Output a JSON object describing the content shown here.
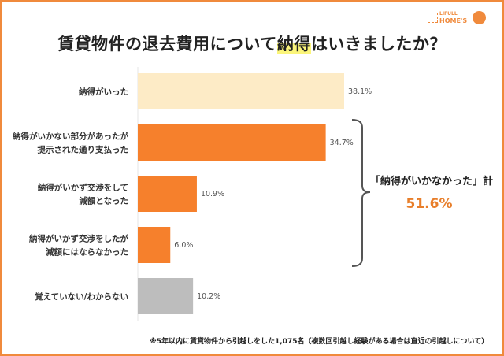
{
  "title_pre": "賃貸物件の退去費用について",
  "title_highlight": "納得",
  "title_post": "はいきましたか？",
  "logo": {
    "line1": "LIFULL",
    "line2": "HOME'S"
  },
  "annotation": {
    "label": "「納得がいかなかった」計",
    "value": "51.6%"
  },
  "footnote": "※5年以内に賃貸物件から引越しをした1,075名（複数回引越し経験がある場合は直近の引越しについて）",
  "colors": {
    "border": "#f08a3c",
    "satisfied": "#fdebc6",
    "unsatisfied": "#f6802c",
    "unknown": "#bdbdbd",
    "accent_text": "#e87e2a"
  },
  "chart_data": {
    "type": "bar",
    "orientation": "horizontal",
    "categories": [
      [
        "納得がいった"
      ],
      [
        "納得がいかない部分があったが",
        "提示された通り支払った"
      ],
      [
        "納得がいかず交渉をして",
        "減額となった"
      ],
      [
        "納得がいかず交渉をしたが",
        "減額にはならなかった"
      ],
      [
        "覚えていない/わからない"
      ]
    ],
    "values": [
      38.1,
      34.7,
      10.9,
      6.0,
      10.2
    ],
    "value_labels": [
      "38.1%",
      "34.7%",
      "10.9%",
      "6.0%",
      "10.2%"
    ],
    "bar_colors": [
      "#fdebc6",
      "#f6802c",
      "#f6802c",
      "#f6802c",
      "#bdbdbd"
    ],
    "xlim": [
      0,
      38.1
    ],
    "grid": false
  }
}
